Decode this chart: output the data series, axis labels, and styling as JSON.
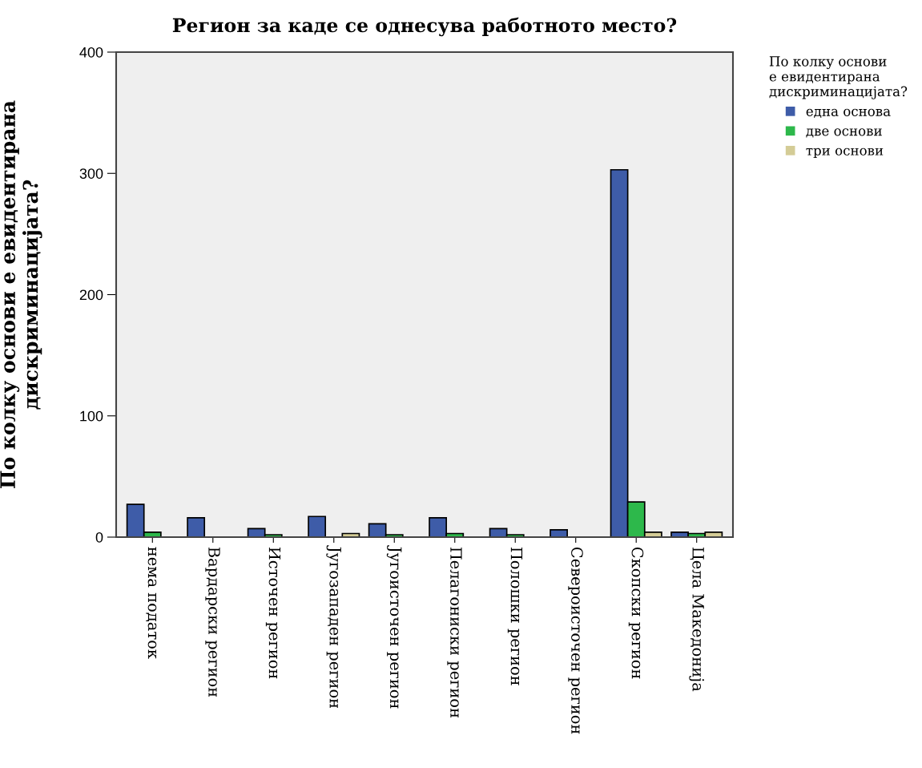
{
  "chart_data": {
    "type": "bar",
    "title": "Регион за каде се однесува работното место?",
    "ylabel": "По колку основи е евидентирана дискриминацијата?",
    "legend_title": "По колку основи\nе евидентирана\nдискриминацијата?",
    "categories": [
      "нема податок",
      "Вардарски регион",
      "Источен регион",
      "Југозападен регион",
      "Југоисточен регион",
      "Пелагониски регион",
      "Полошки регион",
      "Североисточен регион",
      "Скопски регион",
      "Цела Македонија"
    ],
    "series": [
      {
        "name": "една основа",
        "color": "#3e5ca8",
        "values": [
          27,
          16,
          7,
          17,
          11,
          16,
          7,
          6,
          303,
          4
        ]
      },
      {
        "name": "две основи",
        "color": "#2db84b",
        "values": [
          4,
          null,
          2,
          null,
          2,
          3,
          2,
          null,
          29,
          3
        ]
      },
      {
        "name": "три основи",
        "color": "#d4cc96",
        "values": [
          null,
          null,
          null,
          3,
          null,
          null,
          null,
          null,
          4,
          4
        ]
      }
    ],
    "ylim": [
      0,
      400
    ],
    "yticks": [
      0,
      100,
      200,
      300,
      400
    ],
    "grid": false,
    "legend": "top right"
  }
}
